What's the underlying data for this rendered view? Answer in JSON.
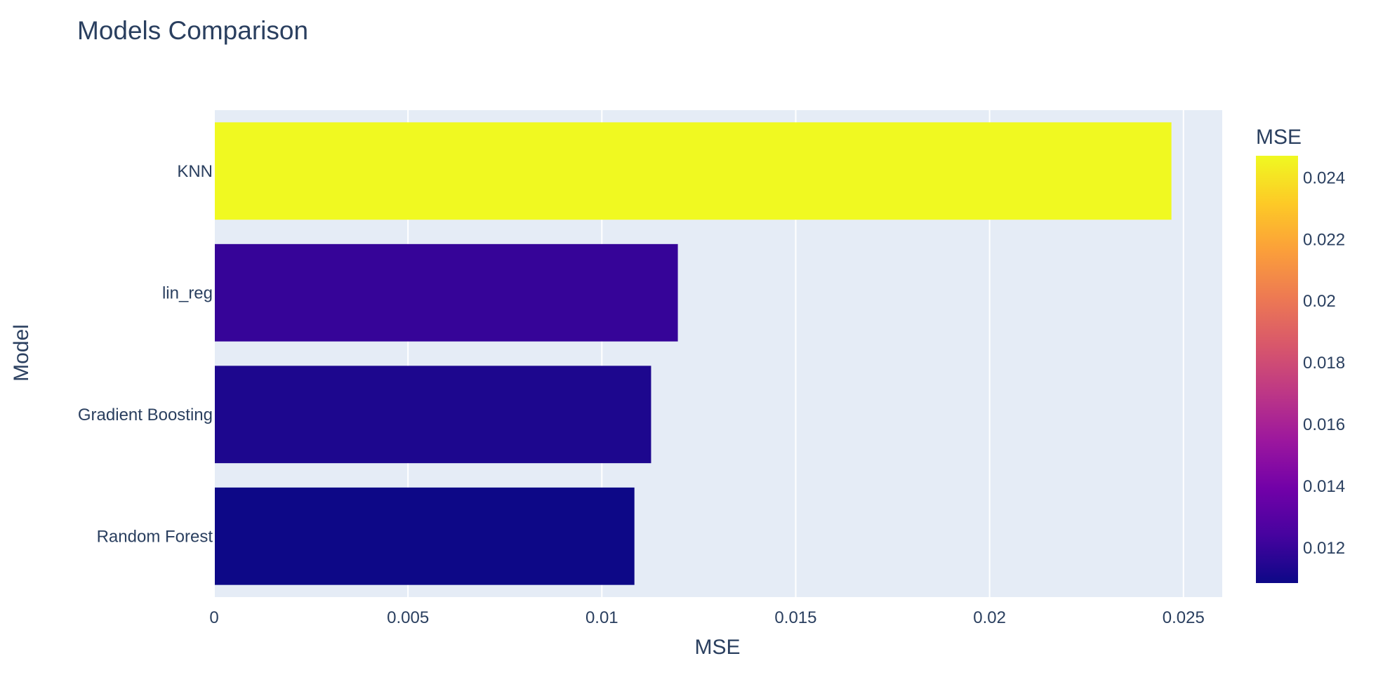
{
  "chart_data": {
    "type": "bar",
    "orientation": "horizontal",
    "title": "Models Comparison",
    "xlabel": "MSE",
    "ylabel": "Model",
    "categories": [
      "Random Forest",
      "Gradient Boosting",
      "lin_reg",
      "KNN"
    ],
    "values": [
      0.01084,
      0.01127,
      0.01196,
      0.02469
    ],
    "xlim": [
      0,
      0.026
    ],
    "x_ticks": [
      0,
      0.005,
      0.01,
      0.015,
      0.02,
      0.025
    ],
    "x_tick_labels": [
      "0",
      "0.005",
      "0.01",
      "0.015",
      "0.02",
      "0.025"
    ],
    "grid": true,
    "colorscale": "plasma",
    "colorbar": {
      "title": "MSE",
      "range": [
        0.01084,
        0.02469
      ],
      "ticks": [
        0.012,
        0.014,
        0.016,
        0.018,
        0.02,
        0.022,
        0.024
      ],
      "tick_labels": [
        "0.012",
        "0.014",
        "0.016",
        "0.018",
        "0.02",
        "0.022",
        "0.024"
      ]
    },
    "colors": {
      "plot_background": "#e5ecf6",
      "gridline": "#ffffff",
      "text": "#2a3f5f",
      "colorscale_stops": [
        "#0d0887",
        "#46039f",
        "#7201a8",
        "#9c179e",
        "#bd3786",
        "#d8576b",
        "#ed7953",
        "#fb9f3a",
        "#fdca26",
        "#f0f921"
      ]
    }
  }
}
